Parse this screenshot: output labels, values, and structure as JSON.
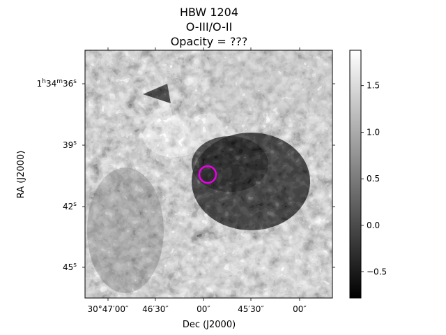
{
  "title_lines": [
    "HBW 1204",
    "O-III/O-II",
    "Opacity = ???"
  ],
  "xlabel": "Dec (J2000)",
  "ylabel": "RA (J2000)",
  "x_ticks": [
    "30°47′00″",
    "46′30″",
    "00″",
    "45′30″",
    "00″"
  ],
  "y_ticks": [
    {
      "main": "1",
      "sup1": "h",
      "mid": "34",
      "sup2": "m",
      "tail": "36",
      "sup3": "s"
    },
    {
      "main": "39",
      "sup1": "s"
    },
    {
      "main": "42",
      "sup1": "s"
    },
    {
      "main": "45",
      "sup1": "s"
    }
  ],
  "colorbar": {
    "ticks": [
      "1.5",
      "1.0",
      "0.5",
      "0.0",
      "−0.5"
    ],
    "vmin": -0.78,
    "vmax": 1.88,
    "tick_values": [
      1.5,
      1.0,
      0.5,
      0.0,
      -0.5
    ]
  },
  "marker": {
    "color": "#e800e8",
    "shape": "circle"
  }
}
